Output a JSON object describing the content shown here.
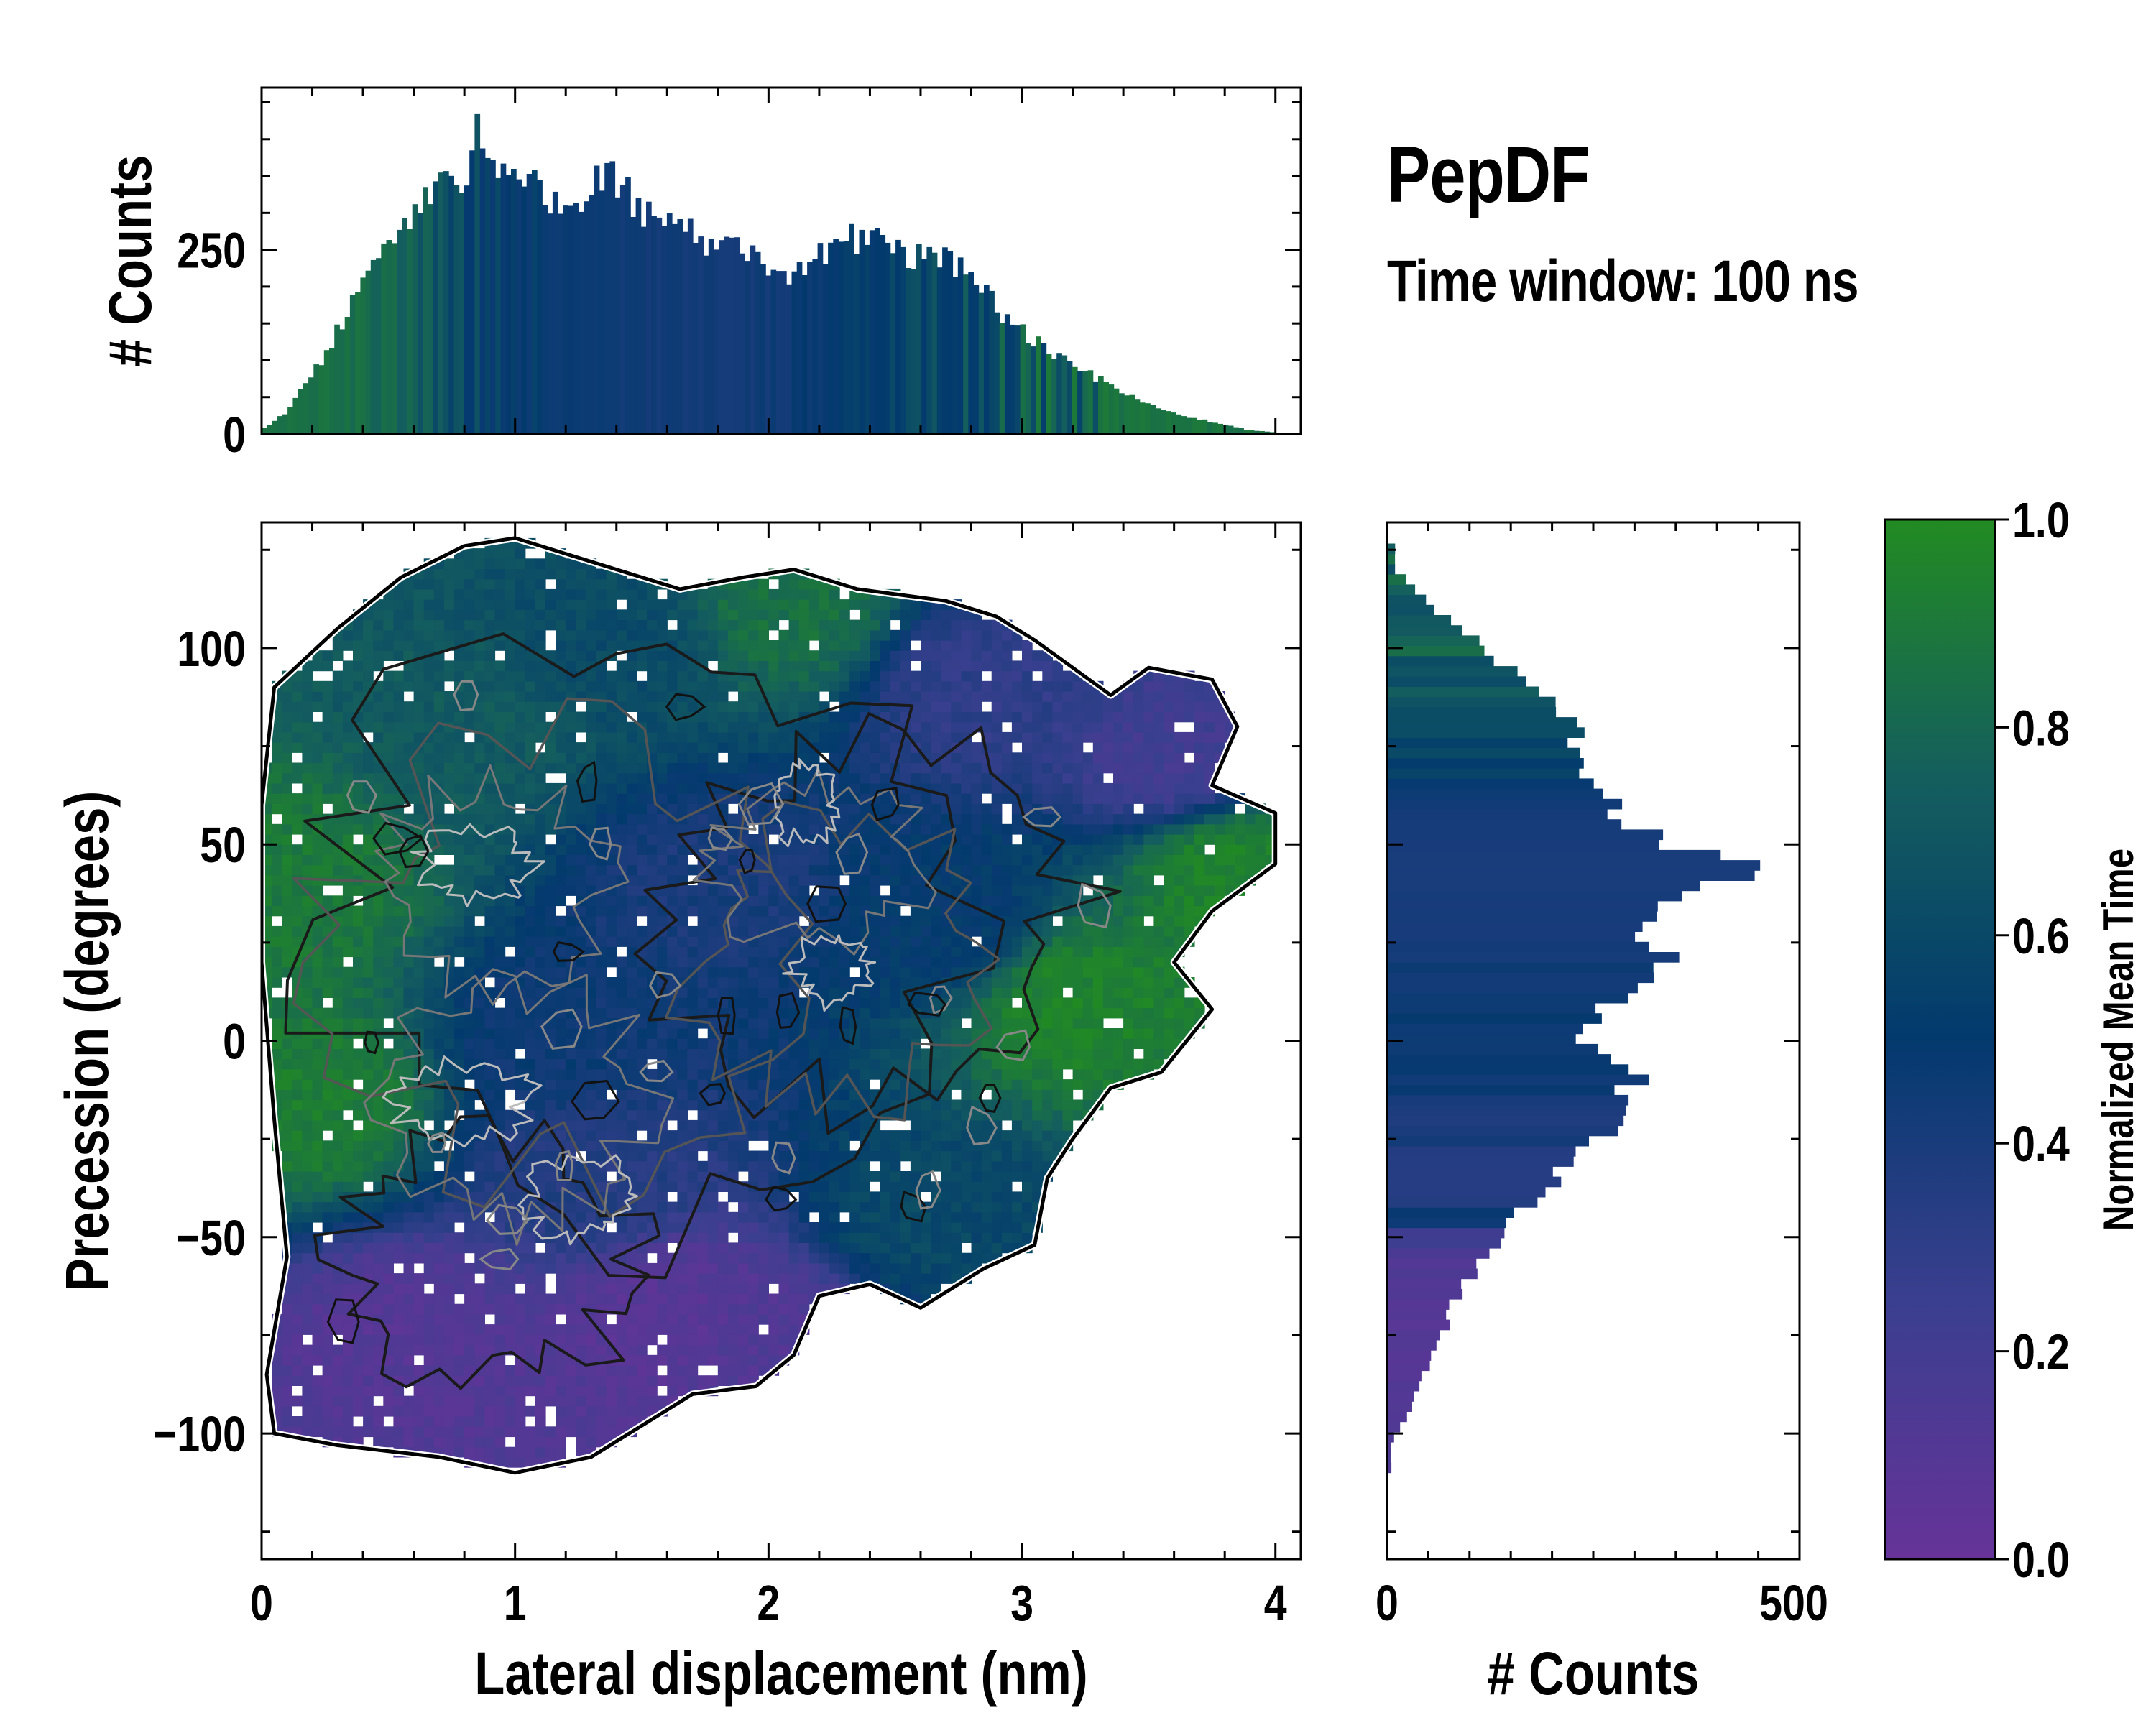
{
  "header": {
    "title": "PepDF",
    "subtitle": "Time window: 100 ns"
  },
  "chart_data": [
    {
      "type": "heatmap",
      "name": "main-2d-density",
      "title": "",
      "xlabel": "Lateral displacement (nm)",
      "ylabel": "Precession (degrees)",
      "xlim": [
        0,
        4.1
      ],
      "ylim": [
        -132,
        132
      ],
      "xticks": [
        0,
        1,
        2,
        3,
        4
      ],
      "xtick_labels": [
        "0",
        "1",
        "2",
        "3",
        "4"
      ],
      "yticks": [
        -100,
        -50,
        0,
        50,
        100
      ],
      "ytick_labels": [
        "−100",
        "−50",
        "0",
        "50",
        "100"
      ],
      "color_encoding": "Normalized Mean Time",
      "overlay": "density contours (black outer, grey/white inner)",
      "regions": [
        {
          "x": 0.8,
          "y": 80,
          "value": 0.72
        },
        {
          "x": 1.4,
          "y": 100,
          "value": 0.62
        },
        {
          "x": 2.1,
          "y": 110,
          "value": 0.85
        },
        {
          "x": 2.8,
          "y": 90,
          "value": 0.3
        },
        {
          "x": 3.6,
          "y": 70,
          "value": 0.2
        },
        {
          "x": 3.8,
          "y": 45,
          "value": 0.95
        },
        {
          "x": 0.1,
          "y": 40,
          "value": 0.9
        },
        {
          "x": 1.8,
          "y": 40,
          "value": 0.4
        },
        {
          "x": 2.7,
          "y": 30,
          "value": 0.5
        },
        {
          "x": 3.2,
          "y": 10,
          "value": 0.95
        },
        {
          "x": 1.2,
          "y": 0,
          "value": 0.45
        },
        {
          "x": 0.2,
          "y": -15,
          "value": 0.92
        },
        {
          "x": 1.3,
          "y": -35,
          "value": 0.35
        },
        {
          "x": 2.6,
          "y": -45,
          "value": 0.6
        },
        {
          "x": 0.6,
          "y": -75,
          "value": 0.1
        },
        {
          "x": 1.6,
          "y": -70,
          "value": 0.08
        },
        {
          "x": 2.0,
          "y": -75,
          "value": 0.12
        }
      ]
    },
    {
      "type": "bar",
      "name": "top-marginal-histogram",
      "xlabel": "",
      "ylabel": "# Counts",
      "xlim": [
        0,
        4.1
      ],
      "ylim": [
        0,
        470
      ],
      "yticks": [
        0,
        250
      ],
      "ytick_labels": [
        "0",
        "250"
      ],
      "profile_x": [
        0,
        0.1,
        0.2,
        0.3,
        0.4,
        0.5,
        0.6,
        0.7,
        0.8,
        0.85,
        0.9,
        1.0,
        1.1,
        1.2,
        1.3,
        1.4,
        1.5,
        1.6,
        1.7,
        1.8,
        1.9,
        2.0,
        2.1,
        2.2,
        2.3,
        2.4,
        2.5,
        2.6,
        2.7,
        2.8,
        2.9,
        3.0,
        3.1,
        3.2,
        3.3,
        3.4,
        3.5,
        3.6,
        3.7,
        3.8,
        3.9,
        4.0,
        4.1
      ],
      "profile_y": [
        5,
        30,
        80,
        140,
        200,
        260,
        300,
        335,
        350,
        400,
        360,
        345,
        330,
        300,
        340,
        350,
        300,
        285,
        270,
        255,
        245,
        225,
        215,
        240,
        265,
        265,
        245,
        240,
        235,
        220,
        170,
        140,
        115,
        95,
        75,
        55,
        40,
        28,
        20,
        12,
        5,
        2,
        0
      ]
    },
    {
      "type": "bar",
      "name": "right-marginal-histogram",
      "orientation": "horizontal",
      "xlabel": "# Counts",
      "ylabel": "",
      "xlim": [
        0,
        500
      ],
      "ylim": [
        -132,
        132
      ],
      "xticks": [
        0,
        500
      ],
      "xtick_labels": [
        "0",
        "500"
      ],
      "profile_y": [
        -102,
        -95,
        -85,
        -75,
        -65,
        -55,
        -45,
        -35,
        -25,
        -15,
        -10,
        -5,
        0,
        10,
        20,
        30,
        40,
        43,
        45,
        50,
        55,
        60,
        70,
        80,
        90,
        100,
        110,
        120
      ],
      "profile_x": [
        5,
        25,
        45,
        65,
        85,
        120,
        160,
        210,
        260,
        290,
        305,
        255,
        240,
        270,
        330,
        320,
        400,
        465,
        430,
        350,
        300,
        270,
        245,
        225,
        170,
        120,
        60,
        10
      ]
    },
    {
      "type": "colorbar",
      "name": "colorbar",
      "label": "Normalized Mean Time",
      "range": [
        0,
        1
      ],
      "ticks": [
        0.0,
        0.2,
        0.4,
        0.6,
        0.8,
        1.0
      ],
      "tick_labels": [
        "0.0",
        "0.2",
        "0.4",
        "0.6",
        "0.8",
        "1.0"
      ],
      "colormap": [
        "#663399",
        "#3a3f8f",
        "#033a6e",
        "#145e5e",
        "#228b22"
      ]
    }
  ]
}
